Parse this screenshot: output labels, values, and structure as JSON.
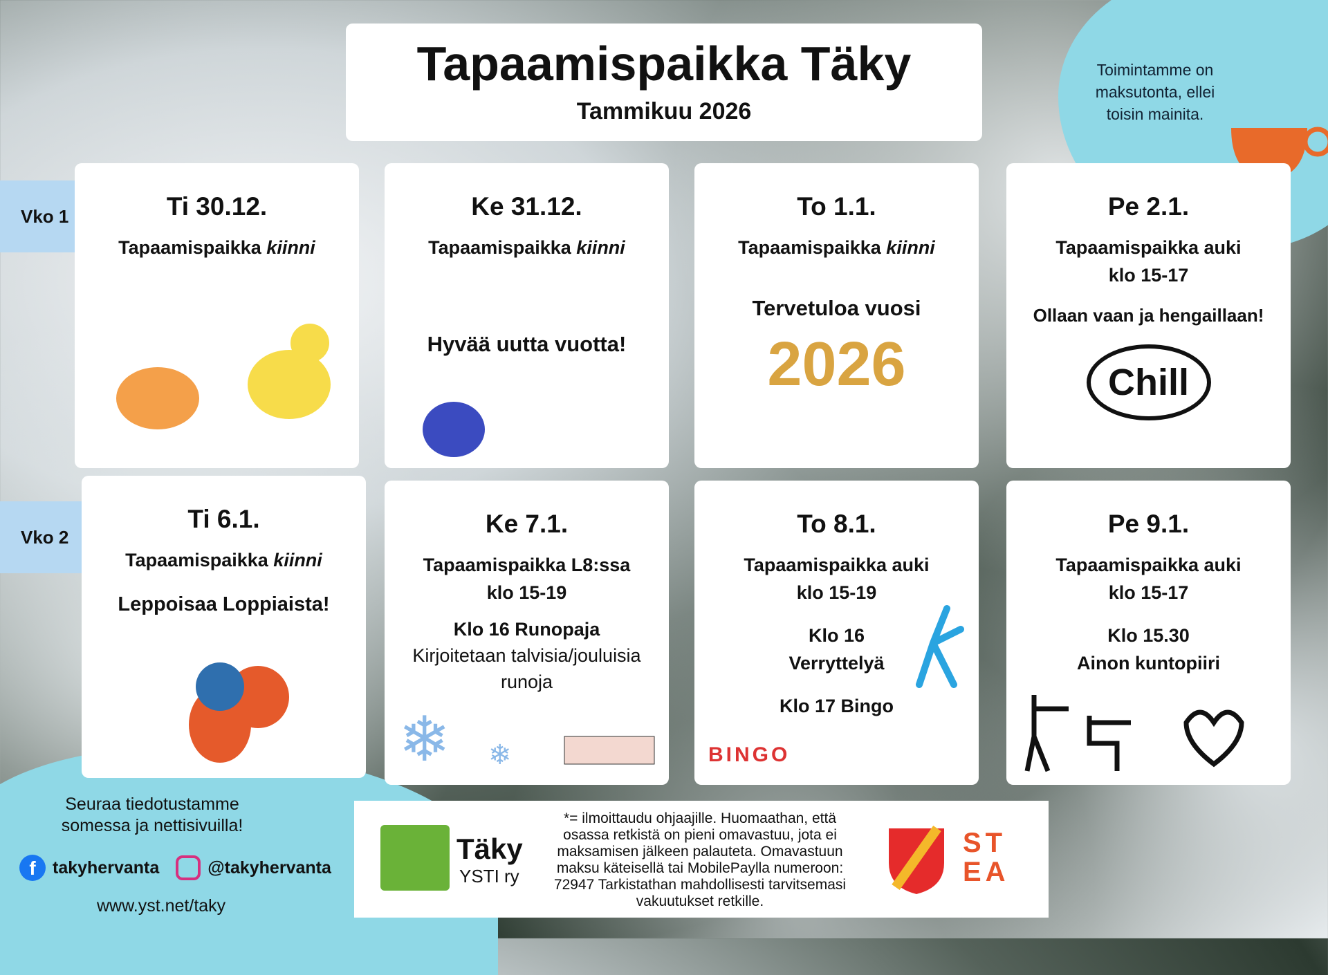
{
  "header": {
    "title": "Tapaamispaikka Täky",
    "subtitle": "Tammikuu 2026"
  },
  "note": "Toimintamme on maksutonta, ellei toisin mainita.",
  "weeks": [
    {
      "label": "Vko 1"
    },
    {
      "label": "Vko 2"
    }
  ],
  "days": [
    {
      "date": "Ti 30.12.",
      "status": "Tapaamispaikka ",
      "status_em": "kiinni",
      "extra": ""
    },
    {
      "date": "Ke 31.12.",
      "status": "Tapaamispaikka ",
      "status_em": "kiinni",
      "extra": "Hyvää uutta vuotta!"
    },
    {
      "date": "To 1.1.",
      "status": "Tapaamispaikka ",
      "status_em": "kiinni",
      "extra": "Tervetuloa vuosi",
      "year": "2026"
    },
    {
      "date": "Pe 2.1.",
      "status": "Tapaamispaikka auki",
      "hours": "klo 15-17",
      "extra": "Ollaan vaan ja hengaillaan!",
      "bubble": "Chill"
    },
    {
      "date": "Ti 6.1.",
      "status": "Tapaamispaikka ",
      "status_em": "kiinni",
      "extra": "Leppoisaa Loppiaista!"
    },
    {
      "date": "Ke 7.1.",
      "status": "Tapaamispaikka L8:ssa",
      "hours": "klo 15-19",
      "event": "Klo 16 Runopaja",
      "desc": "Kirjoitetaan talvisia/jouluisia runoja"
    },
    {
      "date": "To 8.1.",
      "status": "Tapaamispaikka auki",
      "hours": "klo 15-19",
      "event": "Klo 16",
      "event2": "Verryttelyä",
      "event3": "Klo 17 Bingo",
      "bingo": "BINGO"
    },
    {
      "date": "Pe 9.1.",
      "status": "Tapaamispaikka auki",
      "hours": "klo 15-17",
      "event": "Klo 15.30",
      "event2": "Ainon kuntopiiri"
    }
  ],
  "social": {
    "follow": "Seuraa tiedotustamme somessa ja nettisivuilla!",
    "facebook": "takyhervanta",
    "instagram": "@takyhervanta",
    "website": "www.yst.net/taky"
  },
  "footer": {
    "logo_name": "Täky",
    "logo_sub": "YSTI ry",
    "text": "*= ilmoittaudu ohjaajille. Huomaathan, että osassa retkistä on pieni omavastuu, jota ei maksamisen jälkeen palauteta. Omavastuun maksu käteisellä tai MobilePaylla numeroon: 72947 Tarkistathan mahdollisesti tarvitsemasi vakuutukset retkille.",
    "stea": "STEA"
  },
  "colors": {
    "tab": "#b6d8f2",
    "tab_edge": "#2a8de0",
    "blob": "#8fd8e6",
    "logo_green": "#6ab238",
    "stea": "#e8542a"
  }
}
